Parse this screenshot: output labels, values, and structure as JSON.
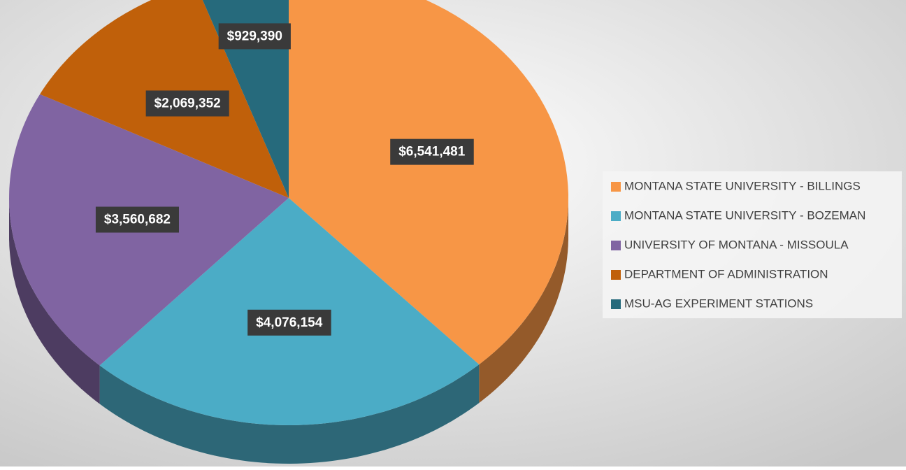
{
  "chart_data": {
    "type": "pie",
    "categories": [
      "MONTANA STATE UNIVERSITY - BILLINGS",
      "MONTANA STATE UNIVERSITY - BOZEMAN",
      "UNIVERSITY OF MONTANA - MISSOULA",
      "DEPARTMENT OF ADMINISTRATION",
      "MSU-AG EXPERIMENT STATIONS"
    ],
    "values": [
      6541481,
      4076154,
      3560682,
      2069352,
      929390
    ],
    "value_labels": [
      "$6,541,481",
      "$4,076,154",
      "$3,560,682",
      "$2,069,352",
      "$929,390"
    ],
    "colors": [
      "#f79646",
      "#4bacc6",
      "#8064a2",
      "#c0600a",
      "#266a7c"
    ],
    "legend": "right"
  }
}
